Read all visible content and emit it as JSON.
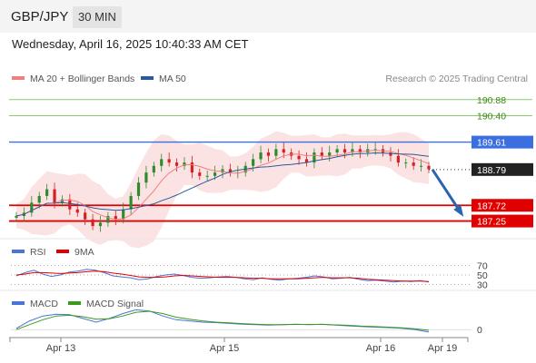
{
  "header": {
    "pair": "GBP/JPY",
    "timeframe": "30 MIN"
  },
  "datetime": "Wednesday, April 16, 2025 10:40:33 AM CET",
  "legend": {
    "ma20": "MA 20 + Bollinger Bands",
    "ma50": "MA 50",
    "credit": "Research © 2025 Trading Central",
    "rsi": "RSI",
    "rsi_ma": "9MA",
    "macd": "MACD",
    "macd_signal": "MACD Signal"
  },
  "colors": {
    "ma20": "#f08080",
    "ma50": "#2a5a9a",
    "bands_fill": "#fbdede",
    "green_level": "#8dc86d",
    "blue_level": "#3b6fe0",
    "red_level": "#e00000",
    "arrow": "#2a63b0",
    "candle_up": "#2e8b2e",
    "candle_down": "#d22222"
  },
  "chart_data": [
    {
      "type": "candlestick",
      "x_labels": [
        "Apr 13",
        "Apr 15",
        "Apr 16",
        "Apr 19"
      ],
      "ylim": [
        186.75,
        191.2
      ],
      "levels": [
        {
          "value": 190.88,
          "label": "190.88",
          "kind": "resistance-green"
        },
        {
          "value": 190.4,
          "label": "190.40",
          "kind": "resistance-green"
        },
        {
          "value": 189.61,
          "label": "189.61",
          "kind": "pivot-blue"
        },
        {
          "value": 187.72,
          "label": "187.72",
          "kind": "support-red"
        },
        {
          "value": 187.25,
          "label": "187.25",
          "kind": "support-red"
        }
      ],
      "last_price": {
        "value": 188.79,
        "label": "188.79"
      },
      "close_series": [
        187.4,
        187.5,
        187.8,
        188.0,
        188.2,
        187.8,
        187.9,
        187.6,
        187.5,
        187.3,
        187.1,
        187.2,
        187.4,
        187.3,
        187.6,
        188.0,
        188.4,
        188.7,
        188.9,
        189.1,
        189.0,
        188.9,
        189.0,
        188.7,
        188.6,
        188.6,
        188.7,
        188.8,
        188.7,
        188.7,
        188.9,
        189.1,
        189.3,
        189.2,
        189.4,
        189.3,
        189.2,
        189.1,
        189.0,
        189.3,
        189.2,
        189.3,
        189.4,
        189.3,
        189.4,
        189.3,
        189.4,
        189.4,
        189.3,
        189.2,
        189.0,
        189.0,
        188.9,
        188.9,
        188.8
      ],
      "arrow": {
        "from": 188.79,
        "to": 187.25,
        "direction": "down"
      }
    },
    {
      "type": "line",
      "name_keys": [
        "RSI",
        "9MA"
      ],
      "y_ticks": [
        70,
        50,
        30
      ],
      "series": [
        {
          "name": "RSI",
          "values": [
            48,
            55,
            60,
            52,
            47,
            50,
            56,
            58,
            62,
            60,
            55,
            48,
            46,
            44,
            40,
            42,
            47,
            50,
            52,
            49,
            45,
            43,
            44,
            46,
            47,
            45,
            42,
            40,
            44,
            41,
            39,
            42,
            43,
            45,
            48,
            46,
            42,
            43,
            45,
            41,
            38,
            39,
            37,
            35,
            37,
            36,
            38,
            35
          ]
        },
        {
          "name": "9MA",
          "values": [
            50,
            52,
            55,
            55,
            54,
            53,
            54,
            55,
            57,
            58,
            57,
            54,
            52,
            49,
            46,
            45,
            45,
            46,
            48,
            49,
            48,
            47,
            46,
            45,
            45,
            45,
            44,
            43,
            43,
            42,
            42,
            42,
            42,
            43,
            44,
            45,
            44,
            44,
            44,
            43,
            41,
            40,
            39,
            38,
            37,
            37,
            37,
            36
          ]
        }
      ]
    },
    {
      "type": "line",
      "y_ticks": [
        0
      ],
      "series": [
        {
          "name": "MACD",
          "values": [
            0.05,
            0.35,
            0.55,
            0.62,
            0.6,
            0.45,
            0.3,
            0.45,
            0.65,
            0.8,
            0.75,
            0.55,
            0.4,
            0.35,
            0.3,
            0.28,
            0.25,
            0.22,
            0.2,
            0.18,
            0.2,
            0.22,
            0.2,
            0.22,
            0.18,
            0.15,
            0.12,
            0.1,
            0.08,
            0.05,
            0.0,
            -0.1
          ]
        },
        {
          "name": "MACD Signal",
          "values": [
            0.0,
            0.2,
            0.4,
            0.55,
            0.58,
            0.52,
            0.42,
            0.44,
            0.55,
            0.7,
            0.74,
            0.65,
            0.5,
            0.42,
            0.35,
            0.3,
            0.27,
            0.24,
            0.22,
            0.2,
            0.2,
            0.21,
            0.21,
            0.21,
            0.19,
            0.17,
            0.14,
            0.12,
            0.1,
            0.07,
            0.03,
            -0.03
          ]
        }
      ]
    }
  ]
}
